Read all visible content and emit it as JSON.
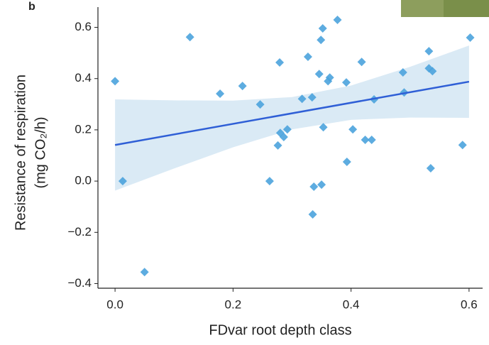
{
  "chart_data": {
    "type": "scatter",
    "panel_label": "b",
    "xlabel": "FDvar root depth class",
    "ylabel": [
      "Resistance of respiration",
      "(mg CO₂/h)"
    ],
    "x": [
      0.0,
      0.013,
      0.05,
      0.127,
      0.178,
      0.216,
      0.246,
      0.262,
      0.276,
      0.279,
      0.28,
      0.286,
      0.292,
      0.317,
      0.327,
      0.334,
      0.335,
      0.337,
      0.346,
      0.349,
      0.35,
      0.352,
      0.353,
      0.361,
      0.364,
      0.377,
      0.392,
      0.393,
      0.403,
      0.418,
      0.424,
      0.435,
      0.439,
      0.488,
      0.49,
      0.532,
      0.532,
      0.538,
      0.535,
      0.589,
      0.602
    ],
    "values": [
      0.39,
      0.0,
      -0.355,
      0.562,
      0.341,
      0.371,
      0.299,
      0.0,
      0.139,
      0.463,
      0.188,
      0.172,
      0.202,
      0.321,
      0.485,
      0.327,
      -0.13,
      -0.022,
      0.418,
      0.551,
      -0.014,
      0.596,
      0.21,
      0.39,
      0.404,
      0.629,
      0.385,
      0.075,
      0.202,
      0.465,
      0.161,
      0.161,
      0.319,
      0.424,
      0.346,
      0.507,
      0.44,
      0.429,
      0.05,
      0.141,
      0.56
    ],
    "color": "#4ba3dd",
    "fit": {
      "x": [
        0,
        0.6
      ],
      "values": [
        0.141,
        0.388
      ],
      "color": "#2f5fd6"
    },
    "band": {
      "x": [
        0,
        0.1,
        0.2,
        0.3,
        0.4,
        0.5,
        0.6
      ],
      "lower": [
        -0.037,
        0.049,
        0.132,
        0.202,
        0.239,
        0.248,
        0.247
      ],
      "upper": [
        0.319,
        0.315,
        0.314,
        0.328,
        0.373,
        0.446,
        0.529
      ],
      "color": "#d3e6f3"
    },
    "xlim": [
      -0.029,
      0.623
    ],
    "ylim": [
      -0.418,
      0.679
    ],
    "xticks": [
      {
        "value": 0,
        "label": "0.0"
      },
      0.2,
      0.4,
      0.6
    ],
    "yticks": [
      {
        "value": -0.4,
        "label": "−0.4"
      },
      {
        "value": -0.2,
        "label": "−0.2"
      },
      {
        "value": 0,
        "label": "0.0"
      },
      0.2,
      0.4,
      0.6
    ]
  }
}
